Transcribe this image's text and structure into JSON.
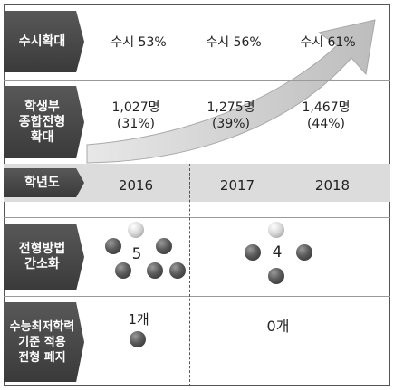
{
  "rows": {
    "susi": {
      "label": "수시확대",
      "values": [
        "수시 53%",
        "수시 56%",
        "수시 61%"
      ]
    },
    "hakjong": {
      "label": "학생부\n종합전형\n확대",
      "values": [
        "1,027명\n(31%)",
        "1,275명\n(39%)",
        "1,467명\n(44%)"
      ]
    },
    "year": {
      "label": "학년도",
      "values": [
        "2016",
        "2017",
        "2018"
      ]
    },
    "method": {
      "label": "전형방법\n간소화",
      "counts": [
        "5",
        "4"
      ]
    },
    "suneung": {
      "label": "수능최저학력\n기준 적용\n전형 폐지",
      "counts": [
        "1개",
        "0개"
      ]
    }
  },
  "colors": {
    "label_bg": "#484848",
    "band": "#dcdcdc",
    "arrow": "#cfcfcf"
  },
  "icons": [
    "growth-arrow",
    "gray-ball",
    "white-ball"
  ]
}
